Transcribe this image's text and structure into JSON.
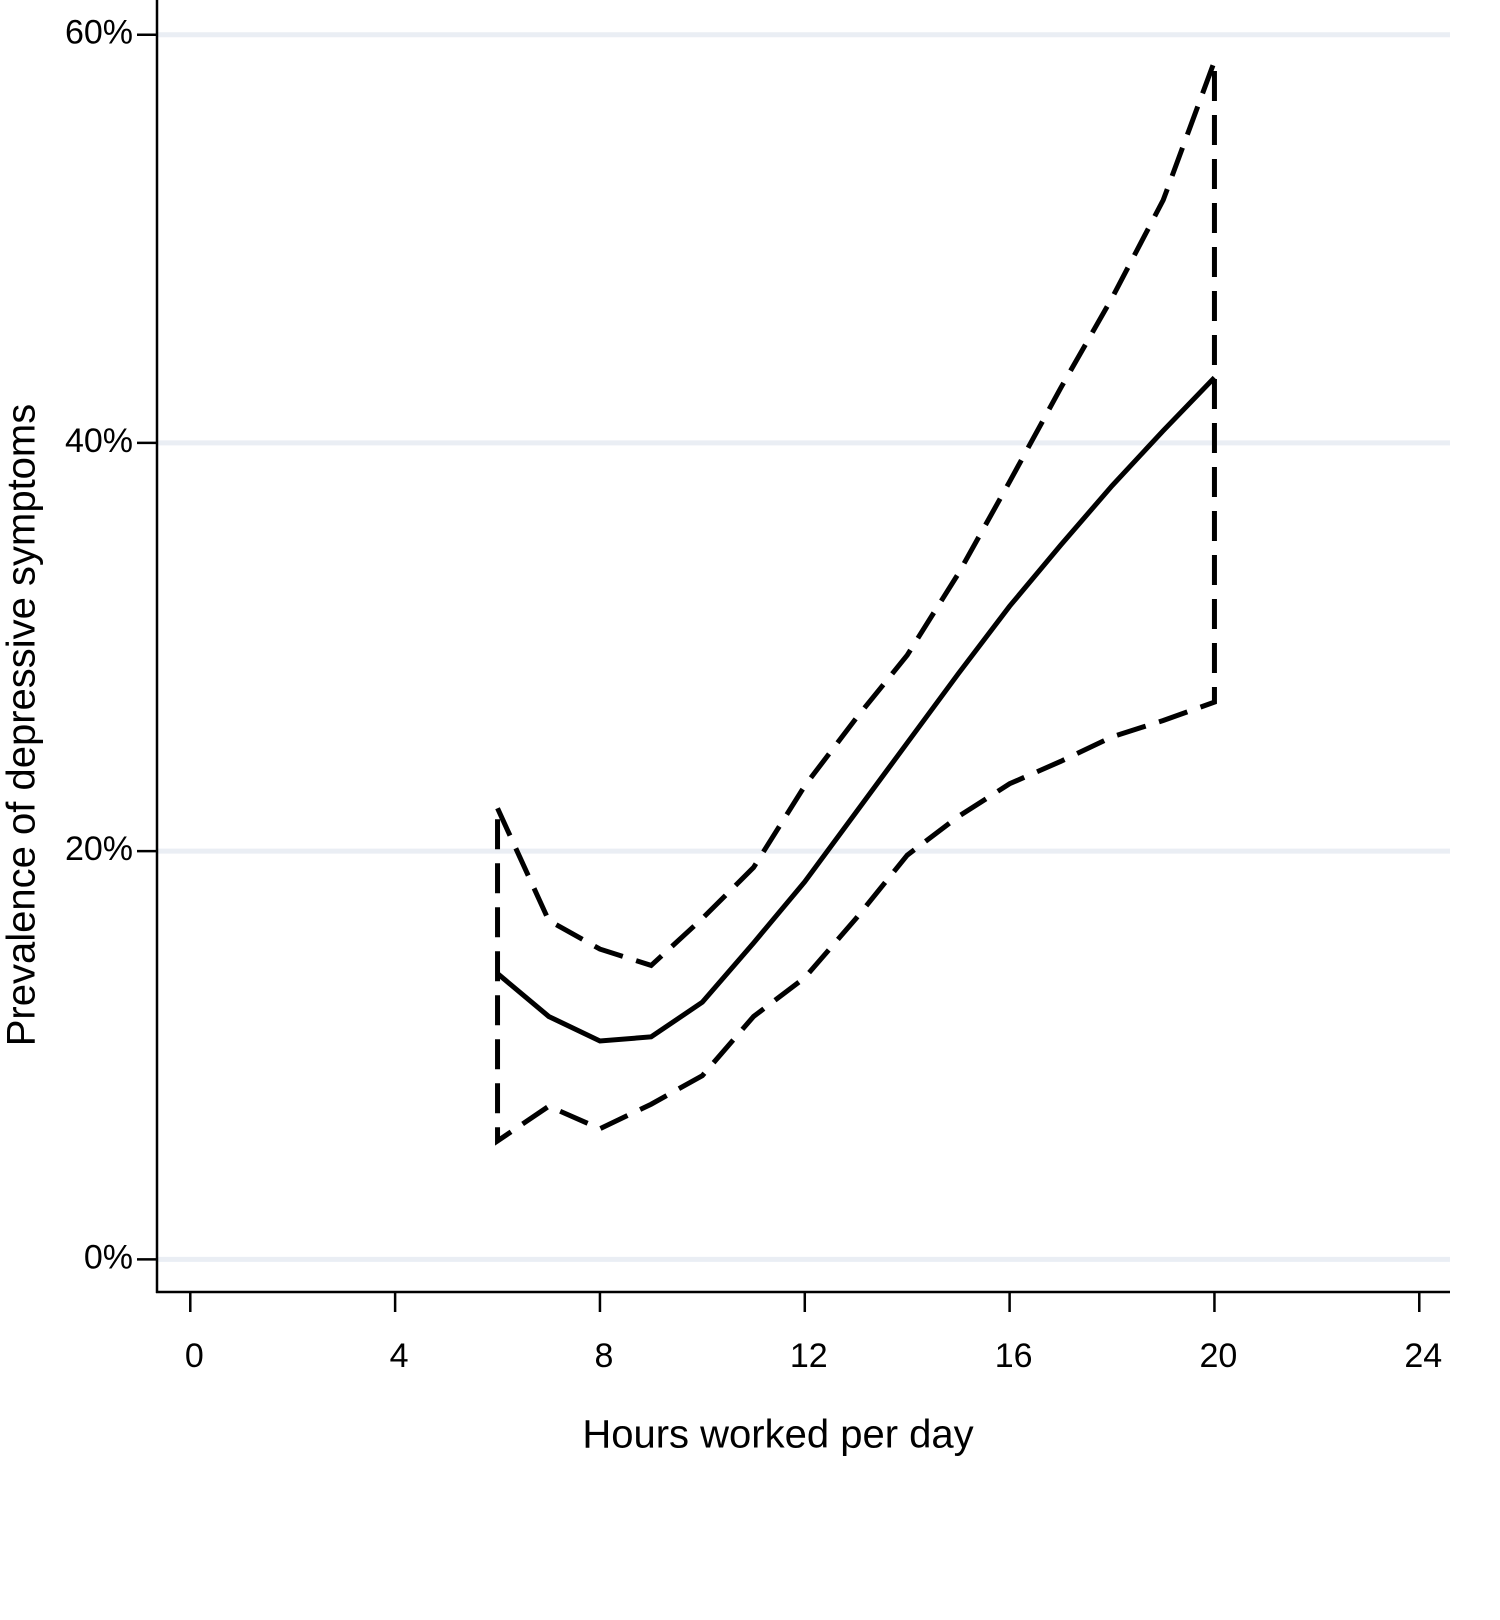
{
  "chart_data": {
    "type": "line",
    "x_label": "Hours worked per day",
    "y_label": "Prevalence of depressive symptoms",
    "x": [
      6,
      7,
      8,
      9,
      10,
      11,
      12,
      13,
      14,
      15,
      16,
      17,
      18,
      19,
      20
    ],
    "series": [
      {
        "color": "#000000",
        "dashed": false,
        "values": [
          14.0,
          11.9,
          10.7,
          10.9,
          12.6,
          15.5,
          18.5,
          21.9,
          25.3,
          28.7,
          32.0,
          35.0,
          37.9,
          40.6,
          43.2
        ]
      },
      {
        "color": "#000000",
        "dashed": true,
        "band": true,
        "upper": [
          22.1,
          16.6,
          15.2,
          14.4,
          16.7,
          19.2,
          23.2,
          26.5,
          29.6,
          33.6,
          38.1,
          42.7,
          47.1,
          51.9,
          58.7
        ],
        "lower": [
          5.8,
          7.5,
          6.4,
          7.6,
          9.0,
          11.9,
          13.8,
          16.7,
          19.8,
          21.7,
          23.3,
          24.4,
          25.6,
          26.4,
          27.3
        ]
      }
    ],
    "xlim": [
      -0.65,
      24.6
    ],
    "ylim": [
      -1.6,
      61.7
    ],
    "xticks": [
      0,
      4,
      8,
      12,
      16,
      20,
      24
    ],
    "yticks": [
      {
        "value": 0,
        "label": "0%"
      },
      {
        "value": 20,
        "label": "20%"
      },
      {
        "value": 40,
        "label": "40%"
      },
      {
        "value": 60,
        "label": "60%"
      }
    ],
    "grid": true,
    "grid_color": "#eaeef4"
  }
}
